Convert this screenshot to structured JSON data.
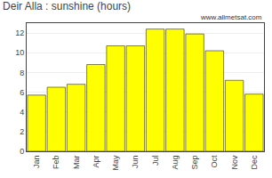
{
  "chart_data": {
    "type": "bar",
    "title": "Deir Alla : sunshine (hours)",
    "categories": [
      "Jan",
      "Feb",
      "Mar",
      "Apr",
      "May",
      "Jun",
      "Jul",
      "Aug",
      "Sep",
      "Oct",
      "Nov",
      "Dec"
    ],
    "values": [
      5.7,
      6.5,
      6.8,
      8.8,
      10.7,
      10.7,
      12.4,
      12.4,
      11.9,
      10.2,
      7.2,
      5.8
    ],
    "color": "#FFFF00",
    "ylim": [
      0,
      13
    ],
    "yticks": [
      0,
      2,
      4,
      6,
      8,
      10,
      12
    ],
    "grid": true,
    "annotations": [
      "www.allmetsat.com"
    ]
  }
}
